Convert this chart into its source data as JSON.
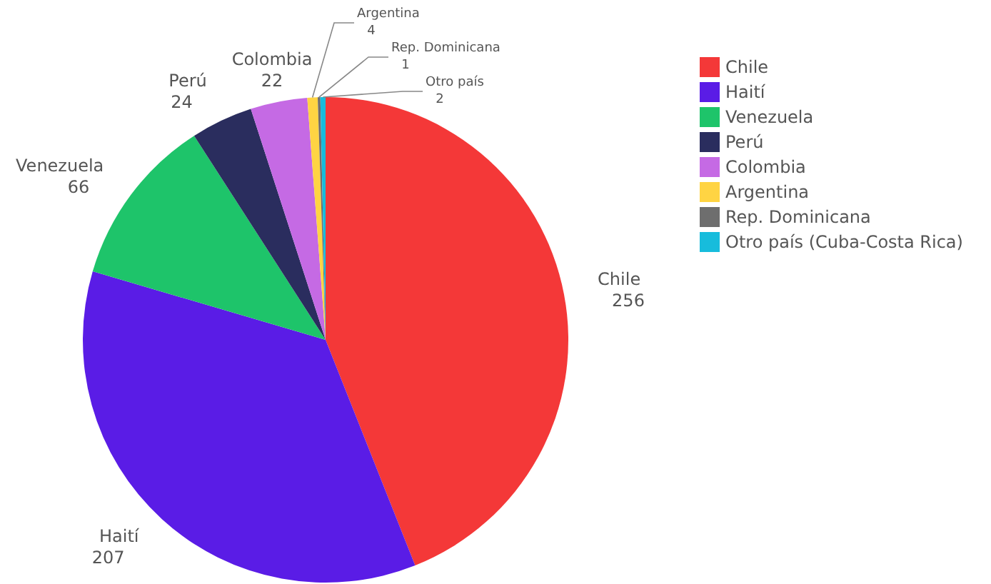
{
  "chart_data": {
    "type": "pie",
    "categories": [
      "Chile",
      "Haití",
      "Venezuela",
      "Perú",
      "Colombia",
      "Argentina",
      "Rep. Dominicana",
      "Otro país (Cuba-Costa Rica)"
    ],
    "values": [
      256,
      207,
      66,
      24,
      22,
      4,
      1,
      2
    ],
    "colors": [
      "#f43838",
      "#5a1ce6",
      "#1ec46a",
      "#2a2d5e",
      "#c56ae4",
      "#ffd443",
      "#6e6e6e",
      "#17bcdc"
    ],
    "data_labels": true,
    "legend": "top right",
    "annotations": [
      {
        "text": "Chile",
        "x": "Chile"
      },
      {
        "text": "Haití",
        "x": "Haití"
      },
      {
        "text": "Venezuela",
        "x": "Venezuela"
      },
      {
        "text": "Perú",
        "x": "Perú"
      },
      {
        "text": "Colombia",
        "x": "Colombia"
      },
      {
        "text": "Argentina",
        "x": "Argentina"
      },
      {
        "text": "Rep. Dominicana",
        "x": "Rep. Dominicana"
      },
      {
        "text": "Otro país",
        "x": "Otro país (Cuba-Costa Rica)"
      }
    ]
  }
}
